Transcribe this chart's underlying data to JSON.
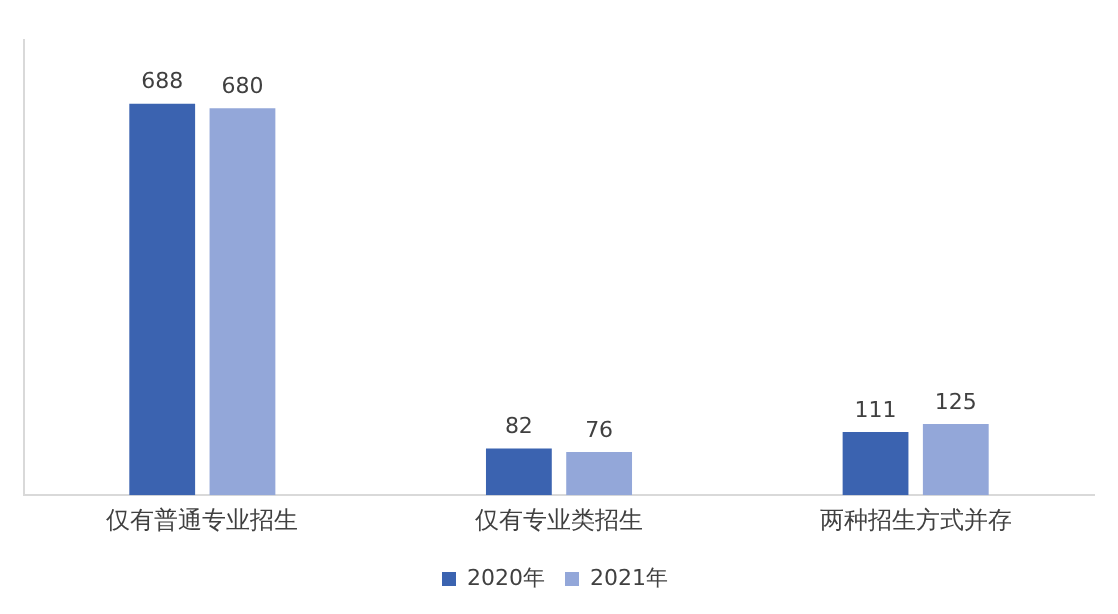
{
  "chart_data": {
    "type": "bar",
    "categories": [
      "仅有普通专业招生",
      "仅有专业类招生",
      "两种招生方式并存"
    ],
    "series": [
      {
        "name": "2020年",
        "color": "#3b63b0",
        "values": [
          688,
          82,
          111
        ]
      },
      {
        "name": "2021年",
        "color": "#93a7d9",
        "values": [
          680,
          76,
          125
        ]
      }
    ],
    "data_labels": true,
    "legend": "bottom",
    "grid": false,
    "tick_labels": "x"
  }
}
